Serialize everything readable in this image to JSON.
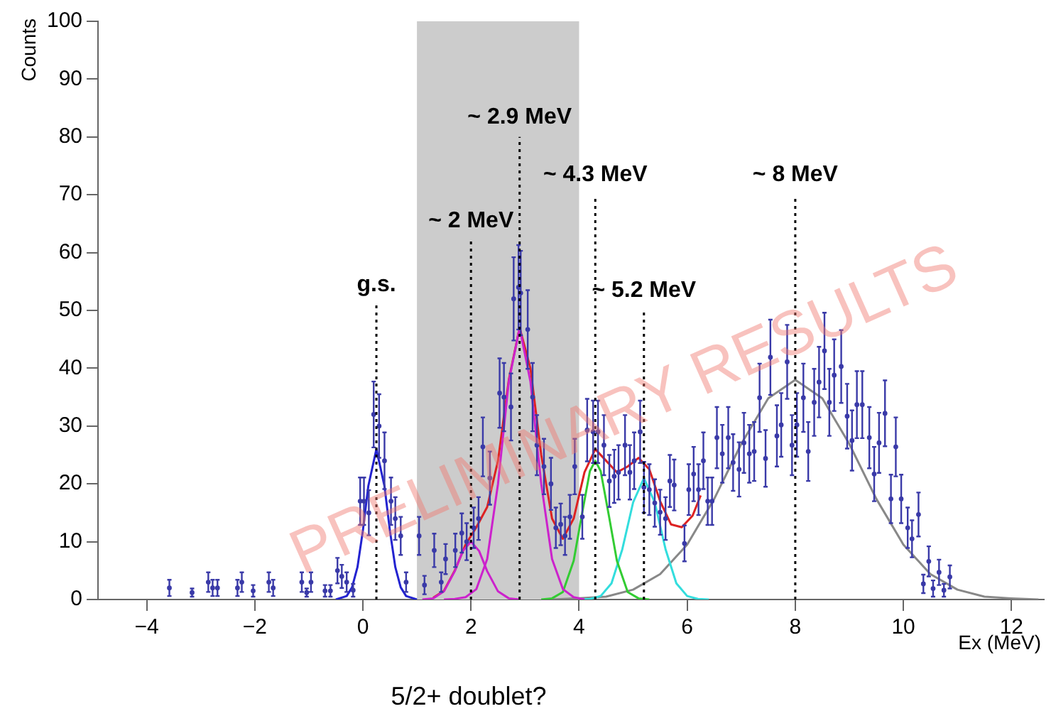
{
  "chart_data": {
    "type": "scatter",
    "xlabel": "Ex (MeV)",
    "ylabel": "Counts",
    "xlim": [
      -4.9,
      12.6
    ],
    "ylim": [
      0,
      100
    ],
    "xticks": [
      -4,
      -2,
      0,
      2,
      4,
      6,
      8,
      10,
      12
    ],
    "yticks": [
      0,
      10,
      20,
      30,
      40,
      50,
      60,
      70,
      80,
      90,
      100
    ],
    "grid": false,
    "legend": false,
    "series": [
      {
        "color": "#3a3aa8",
        "marker": "circle",
        "x": [
          -3.58,
          -3.16,
          -2.86,
          -2.78,
          -2.69,
          -2.32,
          -2.24,
          -2.03,
          -1.74,
          -1.66,
          -1.13,
          -1.04,
          -0.96,
          -0.7,
          -0.6,
          -0.47,
          -0.39,
          -0.3,
          -0.18,
          -0.05,
          0.02,
          0.11,
          0.2,
          0.3,
          0.4,
          0.52,
          0.6,
          0.7,
          0.8,
          1.04,
          1.14,
          1.32,
          1.45,
          1.53,
          1.71,
          1.83,
          1.92,
          2.05,
          2.14,
          2.22,
          2.35,
          2.53,
          2.61,
          2.74,
          2.79,
          2.88,
          2.92,
          3.05,
          3.14,
          3.22,
          3.35,
          3.48,
          3.57,
          3.66,
          3.74,
          3.83,
          3.92,
          4.06,
          4.15,
          4.26,
          4.35,
          4.46,
          4.56,
          4.65,
          4.73,
          4.85,
          4.94,
          5.02,
          5.13,
          5.2,
          5.3,
          5.4,
          5.5,
          5.6,
          5.68,
          5.76,
          5.95,
          6.03,
          6.12,
          6.21,
          6.3,
          6.38,
          6.46,
          6.55,
          6.65,
          6.76,
          6.85,
          6.96,
          7.05,
          7.15,
          7.24,
          7.34,
          7.45,
          7.54,
          7.66,
          7.74,
          7.85,
          7.94,
          8.03,
          8.15,
          8.24,
          8.35,
          8.44,
          8.54,
          8.63,
          8.72,
          8.85,
          8.96,
          9.05,
          9.14,
          9.24,
          9.37,
          9.46,
          9.55,
          9.66,
          9.77,
          9.86,
          9.96,
          10.08,
          10.16,
          10.28,
          10.37,
          10.47,
          10.55,
          10.66,
          10.75,
          10.86
        ],
        "values": [
          2,
          1.2,
          3,
          2,
          2,
          2,
          3,
          1.5,
          3,
          2,
          3,
          1.2,
          3,
          1.5,
          1.5,
          5,
          4,
          3,
          1.6,
          17,
          17,
          15,
          32,
          30,
          24,
          17,
          14,
          11,
          3,
          11,
          2.5,
          8.5,
          3,
          7,
          8.5,
          11.5,
          10,
          12.4,
          14,
          26.4,
          21,
          35.7,
          35,
          33.3,
          52,
          54,
          53,
          46.7,
          35,
          26.7,
          23,
          20,
          12.4,
          13,
          11,
          14.3,
          23,
          14.3,
          29.3,
          29,
          29,
          26.7,
          20.5,
          21.3,
          22,
          26.7,
          22,
          24,
          29,
          19.4,
          19,
          16.7,
          15.1,
          14,
          20.5,
          19.8,
          9.7,
          19,
          21.7,
          19,
          24,
          17,
          17,
          28,
          25.2,
          28,
          23.7,
          22.5,
          27.1,
          25.2,
          25.6,
          34.9,
          24.4,
          41.9,
          28.3,
          30.2,
          41.1,
          26.7,
          30.2,
          34.9,
          25.6,
          34.1,
          37.6,
          43,
          34.1,
          38.8,
          40.3,
          31.7,
          27.5,
          33.7,
          33.7,
          28,
          21.7,
          27.1,
          32.2,
          17.4,
          26.4,
          17.4,
          12.4,
          10.5,
          14.7,
          2.7,
          6.6,
          1.9,
          4.7,
          1.6,
          3.9
        ],
        "errors": [
          1.4,
          0.7,
          1.7,
          1.4,
          1.4,
          1.4,
          1.7,
          1,
          1.7,
          1.4,
          1.7,
          0.7,
          1.7,
          1,
          1,
          2.2,
          2,
          1.7,
          1.1,
          4.1,
          4.1,
          3.9,
          5.7,
          5.5,
          4.9,
          4.1,
          3.7,
          3.3,
          1.7,
          3.3,
          1.6,
          2.9,
          1.7,
          2.6,
          2.9,
          3.4,
          3.2,
          3.5,
          3.7,
          5.1,
          4.6,
          6,
          5.9,
          5.8,
          7.2,
          7.3,
          7.3,
          6.8,
          5.9,
          5.2,
          4.8,
          4.5,
          3.5,
          3.6,
          3.3,
          3.8,
          4.8,
          3.8,
          5.4,
          5.4,
          5.4,
          5.2,
          4.5,
          4.6,
          4.7,
          5.2,
          4.7,
          4.9,
          5.4,
          4.4,
          4.4,
          4.1,
          3.9,
          3.7,
          4.5,
          4.4,
          3.1,
          4.4,
          4.7,
          4.4,
          4.9,
          4.1,
          4.1,
          5.3,
          5,
          5.3,
          4.9,
          4.7,
          5.2,
          5,
          5.1,
          5.9,
          4.9,
          6.5,
          5.3,
          5.5,
          6.4,
          5.2,
          5.5,
          5.9,
          5.1,
          5.8,
          6.1,
          6.6,
          5.8,
          6.2,
          6.3,
          5.6,
          5.2,
          5.8,
          5.8,
          5.3,
          4.7,
          5.2,
          5.7,
          4.2,
          5.1,
          4.2,
          3.5,
          3.2,
          3.8,
          1.6,
          2.6,
          1.4,
          2.2,
          1.1,
          2
        ]
      },
      {
        "type": "line",
        "color": "#2323d0",
        "x": [
          -0.5,
          -0.3,
          -0.2,
          -0.1,
          0,
          0.1,
          0.25,
          0.4,
          0.5,
          0.6,
          0.7,
          0.8,
          1.0
        ],
        "values": [
          0,
          0.6,
          2.1,
          5.6,
          11.9,
          19.6,
          26,
          19.6,
          11.9,
          5.6,
          2.1,
          0.6,
          0
        ]
      },
      {
        "type": "line",
        "color": "#cc22cc",
        "x": [
          1.1,
          1.3,
          1.5,
          1.7,
          1.85,
          2.0,
          2.15,
          2.3,
          2.5,
          2.7,
          2.9
        ],
        "values": [
          0,
          0.2,
          1.4,
          4.9,
          8.4,
          10,
          8.4,
          4.9,
          1.4,
          0.2,
          0
        ]
      },
      {
        "type": "line",
        "color": "#cc22cc",
        "x": [
          1.5,
          1.7,
          1.9,
          2.1,
          2.3,
          2.5,
          2.7,
          2.9,
          3.1,
          3.3,
          3.5,
          3.7,
          3.9,
          4.1
        ],
        "values": [
          0,
          0.1,
          0.4,
          1.8,
          7,
          20,
          37.7,
          47,
          37.7,
          20,
          7,
          1.8,
          0.4,
          0
        ]
      },
      {
        "type": "line",
        "color": "#33cc33",
        "x": [
          3.3,
          3.5,
          3.7,
          3.9,
          4.05,
          4.2,
          4.3,
          4.4,
          4.55,
          4.7,
          4.9,
          5.1,
          5.3
        ],
        "values": [
          0,
          0.2,
          1.3,
          6.7,
          14.6,
          22.2,
          24,
          22.2,
          14.6,
          6.7,
          1.3,
          0.2,
          0
        ]
      },
      {
        "type": "line",
        "color": "#33dddd",
        "x": [
          4.0,
          4.2,
          4.4,
          4.6,
          4.8,
          5.0,
          5.2,
          5.4,
          5.6,
          5.8,
          6.0,
          6.2,
          6.4
        ],
        "values": [
          0,
          0.1,
          0.6,
          2.8,
          8.7,
          16.8,
          21,
          16.8,
          8.7,
          2.8,
          0.6,
          0.1,
          0
        ]
      },
      {
        "type": "line",
        "color": "#888888",
        "x": [
          3.5,
          4,
          4.5,
          5,
          5.5,
          6,
          6.5,
          7,
          7.5,
          8,
          8.5,
          9,
          9.5,
          10,
          10.5,
          11,
          11.5,
          12,
          12.5
        ],
        "values": [
          0,
          0.2,
          0.5,
          1.7,
          4.4,
          9.5,
          17.4,
          26.9,
          34.8,
          38,
          34.8,
          26.9,
          17.4,
          9.5,
          4.4,
          1.7,
          0.5,
          0.2,
          0
        ]
      },
      {
        "type": "line",
        "color": "#dd2222",
        "x": [
          1.3,
          1.5,
          1.7,
          1.9,
          2.1,
          2.3,
          2.5,
          2.7,
          2.9,
          3.1,
          3.3,
          3.5,
          3.7,
          3.9,
          4.1,
          4.3,
          4.5,
          4.7,
          4.9,
          5.1,
          5.3,
          5.5,
          5.7,
          5.9,
          6.1,
          6.25
        ],
        "values": [
          0.3,
          1.5,
          5,
          9.5,
          12.5,
          16,
          24,
          38,
          47,
          40,
          25,
          14,
          10.5,
          14,
          22,
          26,
          24,
          22,
          23,
          24.5,
          22.5,
          17,
          13,
          12.5,
          14.5,
          18
        ]
      }
    ],
    "bands": [
      {
        "axis": "x",
        "from": 1,
        "to": 4,
        "color": "#cccccc"
      }
    ],
    "ref_lines": [
      {
        "axis": "x",
        "value": 0.25,
        "line_style": "dotted",
        "color": "#000000"
      },
      {
        "axis": "x",
        "value": 2,
        "line_style": "dotted",
        "color": "#000000"
      },
      {
        "axis": "x",
        "value": 2.9,
        "line_style": "dotted",
        "color": "#000000"
      },
      {
        "axis": "x",
        "value": 4.3,
        "line_style": "dotted",
        "color": "#000000"
      },
      {
        "axis": "x",
        "value": 5.2,
        "line_style": "dotted",
        "color": "#000000"
      },
      {
        "axis": "x",
        "value": 8,
        "line_style": "dotted",
        "color": "#000000"
      }
    ],
    "annotations": [
      {
        "text": "g.s.",
        "x": 0.25,
        "y": 51
      },
      {
        "text": "~ 2 MeV",
        "x": 2,
        "y": 62
      },
      {
        "text": "~ 2.9 MeV",
        "x": 2.9,
        "y": 80
      },
      {
        "text": "~ 4.3 MeV",
        "x": 4.3,
        "y": 70
      },
      {
        "text": "~ 5.2 MeV",
        "x": 5.2,
        "y": 50
      },
      {
        "text": "~ 8 MeV",
        "x": 8,
        "y": 70
      },
      "5/2+ doublet?",
      "PRELIMINARY RESULTS"
    ]
  }
}
